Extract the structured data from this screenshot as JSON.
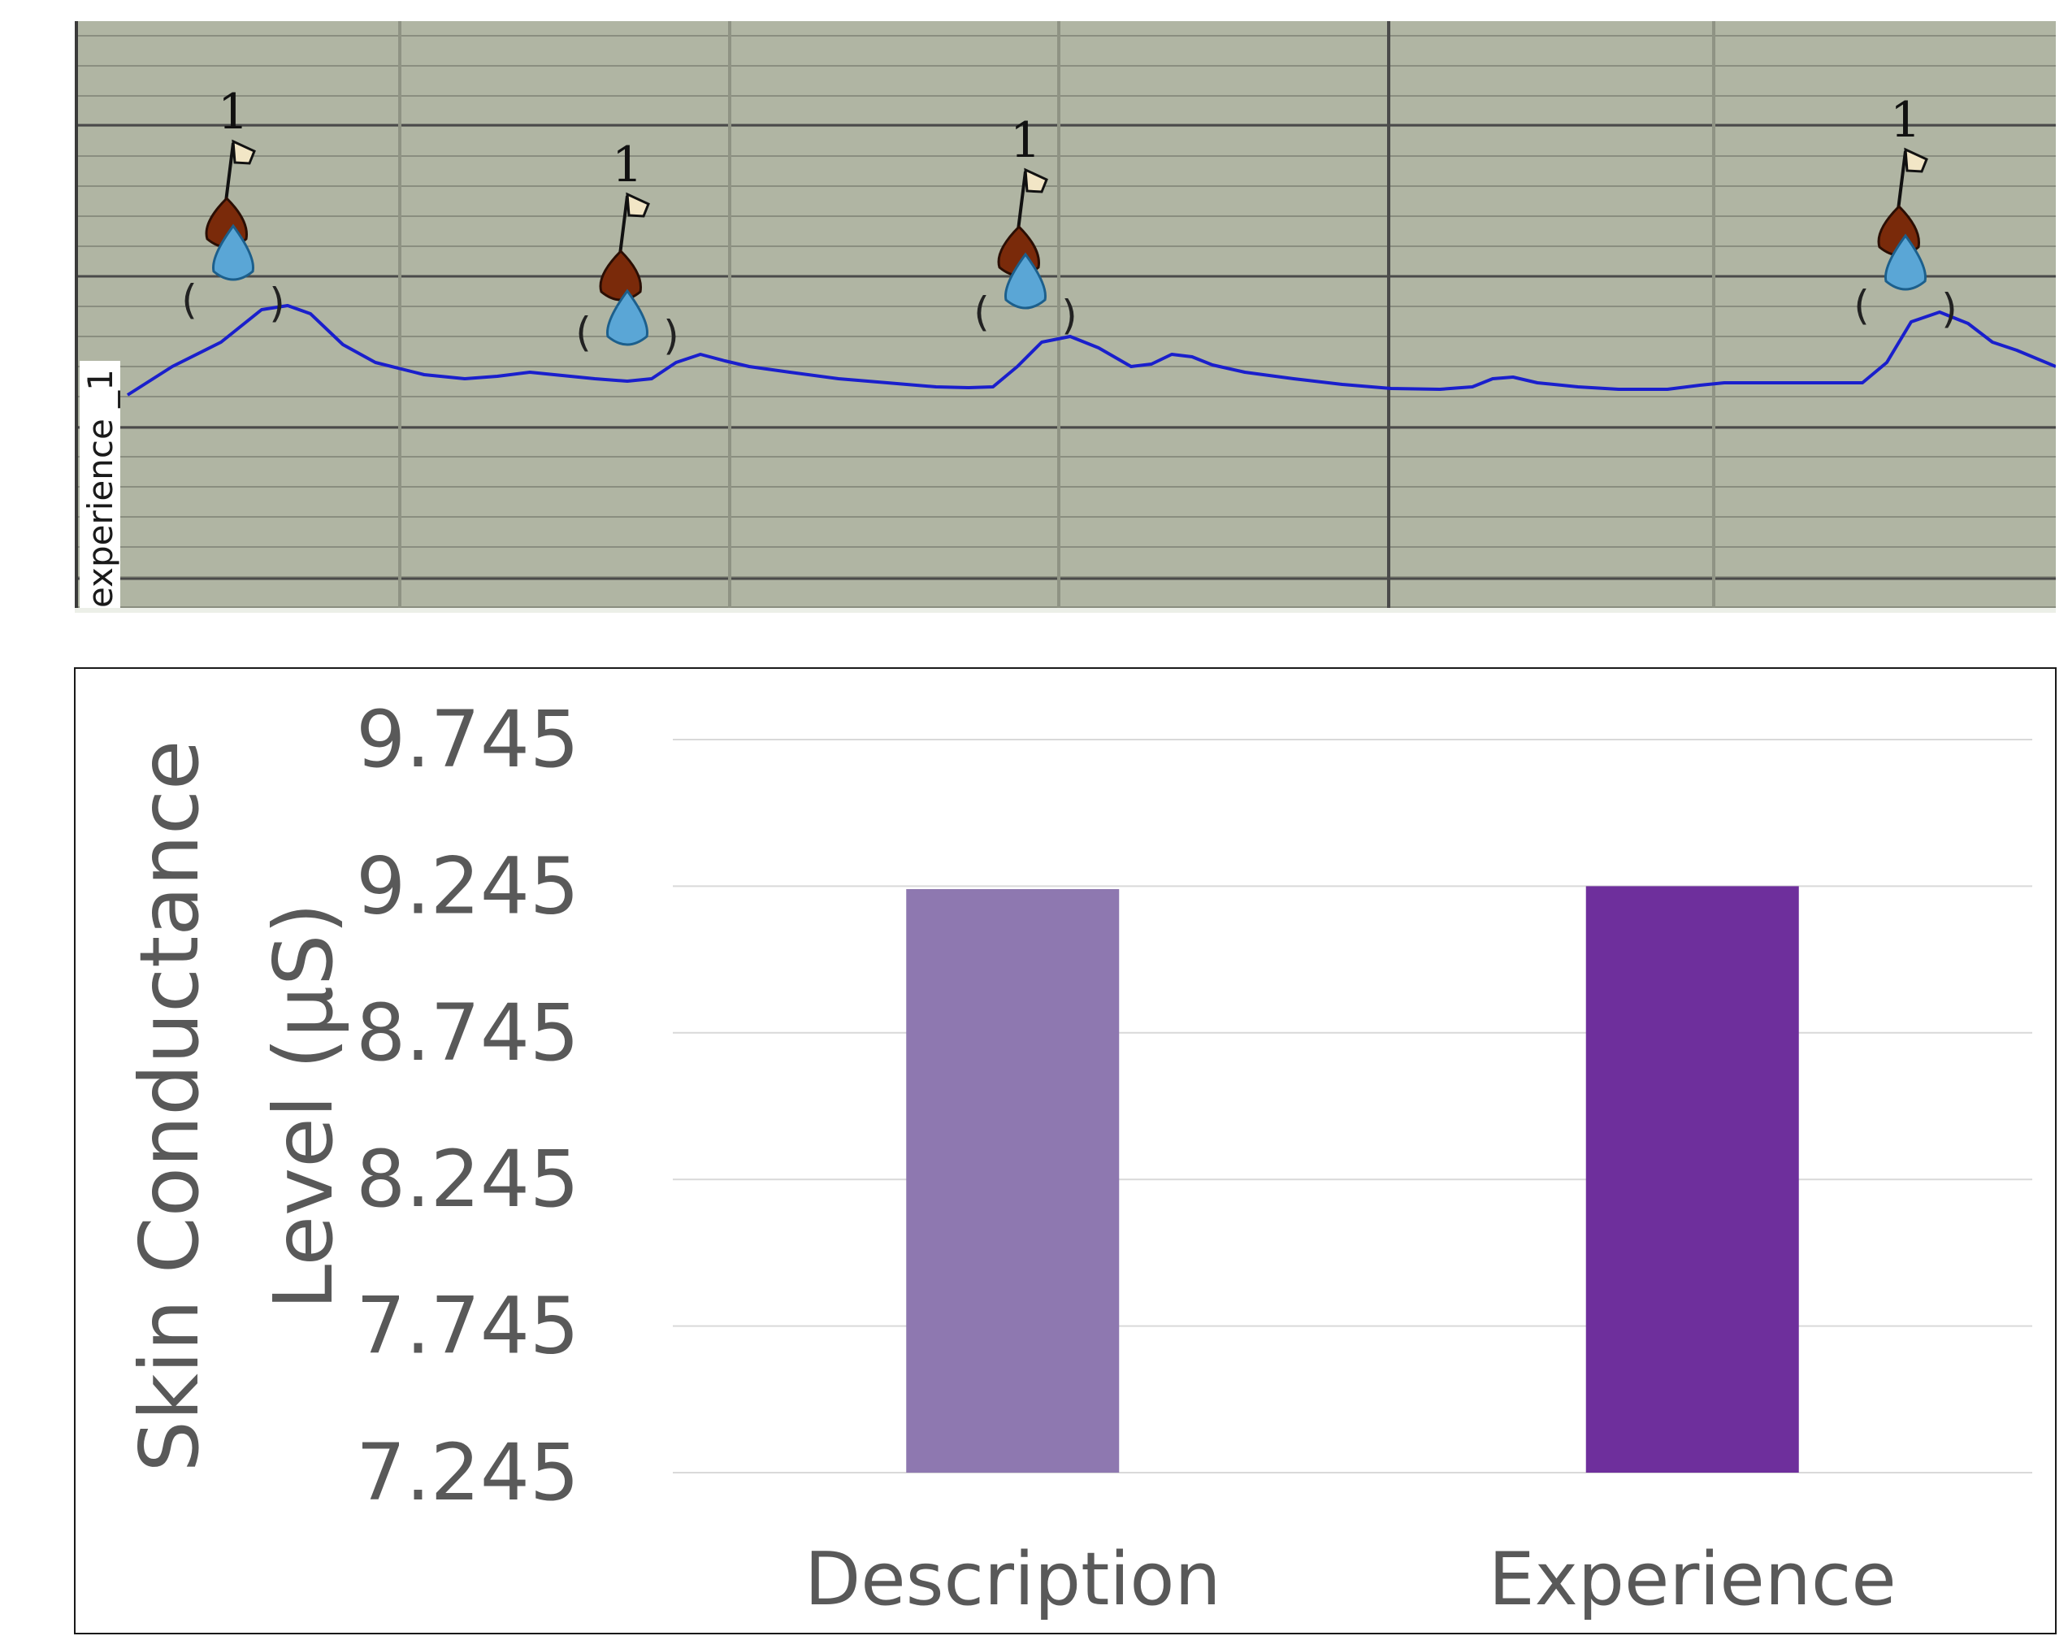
{
  "top_panel": {
    "track_label": "experience _1",
    "event_marker_label": "1",
    "event_count": 4,
    "colors": {
      "background": "#b0b5a3",
      "major_grid": "#4a4a4a",
      "minor_grid": "#8a8e80",
      "signal": "#1a1fcc",
      "flag_icon": "#f2e6c6",
      "bulb_icon": "#7a2a0a",
      "drop_icon": "#5aa6d6"
    }
  },
  "chart_data": {
    "type": "bar",
    "categories": [
      "Description",
      "Experience"
    ],
    "values": [
      9.235,
      9.245
    ],
    "ylabel": "Skin Conductance Level (µS)",
    "ylim": [
      7.245,
      9.745
    ],
    "yticks": [
      "9.745",
      "9.245",
      "8.745",
      "8.245",
      "7.745",
      "7.245"
    ],
    "grid": true,
    "colors": [
      "#8e78b0",
      "#6e2f9c"
    ]
  }
}
